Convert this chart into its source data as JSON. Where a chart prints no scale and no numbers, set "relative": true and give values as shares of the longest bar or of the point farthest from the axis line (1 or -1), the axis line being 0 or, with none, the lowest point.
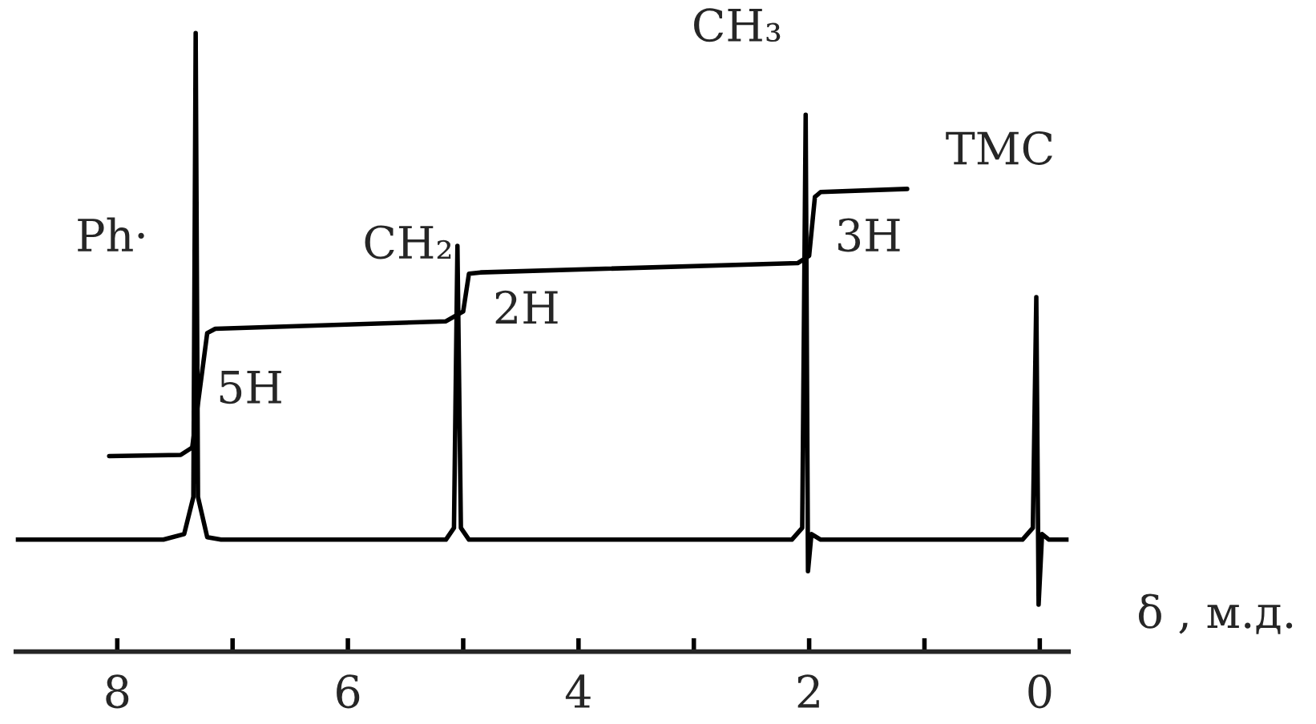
{
  "chart_data": {
    "type": "line",
    "relative": true,
    "xlabel": "δ , м.д.",
    "xlim": [
      8.88,
      -0.25
    ],
    "xticks": [
      8,
      {
        "value": 7,
        "label": null
      },
      6,
      {
        "value": 5,
        "label": null
      },
      4,
      {
        "value": 3,
        "label": null
      },
      2,
      {
        "value": 1,
        "label": null
      },
      0
    ],
    "tick_labels": "x",
    "grid": false,
    "legend": false,
    "series": [
      {
        "color": "#000000",
        "x": [
          8.88,
          7.6,
          7.42,
          7.34,
          7.32,
          7.3,
          7.22,
          7.1,
          5.15,
          5.08,
          5.05,
          5.02,
          4.95,
          2.15,
          2.06,
          2.03,
          2.01,
          1.98,
          1.9,
          0.15,
          0.06,
          0.03,
          0.01,
          -0.02,
          -0.08,
          -0.25
        ],
        "values": [
          0.181,
          0.181,
          0.19,
          0.25,
          1.0,
          0.25,
          0.185,
          0.181,
          0.181,
          0.2,
          0.656,
          0.2,
          0.181,
          0.181,
          0.2,
          0.868,
          0.13,
          0.19,
          0.181,
          0.181,
          0.2,
          0.573,
          0.076,
          0.19,
          0.181,
          0.181
        ]
      },
      {
        "color": "#000000",
        "x": [
          8.07,
          7.45,
          7.35,
          7.22,
          7.15,
          5.15,
          5.0,
          4.95,
          4.85,
          2.1,
          2.0,
          1.95,
          1.9,
          1.15
        ],
        "values": [
          0.316,
          0.318,
          0.33,
          0.515,
          0.522,
          0.534,
          0.55,
          0.611,
          0.613,
          0.628,
          0.64,
          0.735,
          0.743,
          0.748
        ]
      }
    ],
    "annotations": [
      "Ph·",
      "CH₂",
      "CH₃",
      "TMC",
      "5H",
      "2H",
      "3H"
    ]
  }
}
